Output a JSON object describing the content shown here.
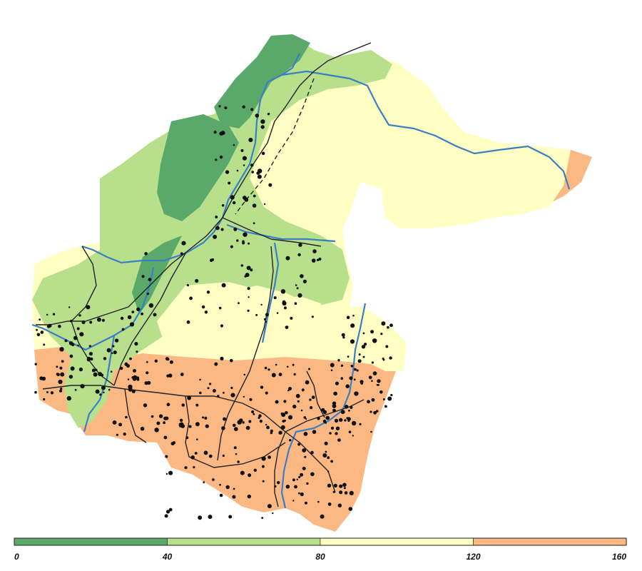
{
  "legend": {
    "ticks": [
      "0",
      "40",
      "80",
      "120",
      "160"
    ],
    "classes": [
      {
        "range": [
          0,
          40
        ],
        "color": "#5aa86a"
      },
      {
        "range": [
          40,
          80
        ],
        "color": "#b8e08c"
      },
      {
        "range": [
          80,
          120
        ],
        "color": "#ffffc4"
      },
      {
        "range": [
          120,
          160
        ],
        "color": "#fbb882"
      }
    ]
  },
  "colors": {
    "river": "#3a7fc4",
    "road": "#222222",
    "settlement": "#111111"
  }
}
